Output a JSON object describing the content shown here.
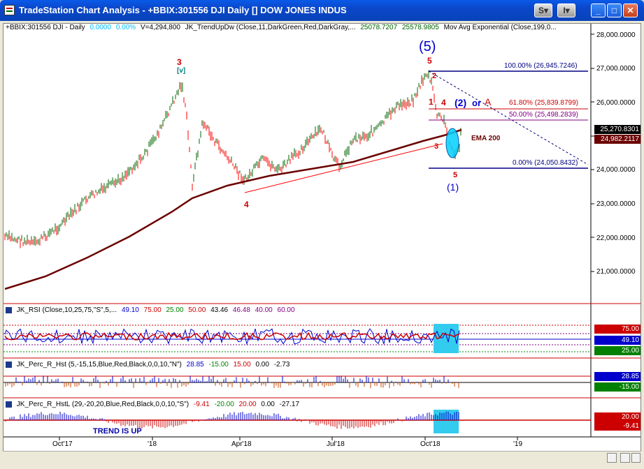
{
  "window": {
    "title": "TradeStation Chart Analysis - +BBIX:301556 DJI Daily [] DOW JONES INDUS",
    "buttons": {
      "s": "S",
      "i": "I"
    }
  },
  "price_header": {
    "symbol": "+BBIX:301556 DJI - Daily",
    "chg": "0.0000",
    "pct": "0.00%",
    "vol": "V=4,294,800",
    "indicator": "JK_TrendUpDw (Close,11,DarkGreen,Red,DarkGray,...",
    "val1": "25078.7207",
    "val2": "25578.9805",
    "mov": "Mov Avg Exponential (Close,199,0..."
  },
  "price_axis": [
    "28,000.0000",
    "27,000.0000",
    "26,000.0000",
    "25,000.0000",
    "24,000.0000",
    "23,000.0000",
    "22,000.0000",
    "21,000.0000"
  ],
  "price_boxes": {
    "last": "25,270.8301",
    "ema": "24,982.2117"
  },
  "fib_labels": {
    "f100": "100.00% (26,945.7246)",
    "f618": "61.80% (25,839.8799)",
    "f50": "50.00% (25,498.2839)",
    "f0": "0.00% (24,050.8432)"
  },
  "annotations": {
    "wave5_big": "(5)",
    "w5": "5",
    "w3": "3",
    "w3b": "[v]",
    "w4": "4",
    "w2": "2",
    "w1r": "1",
    "w4r": "4",
    "w3r": "3",
    "w5r": "5",
    "w2_or": "(2)",
    "or": "or",
    "a": "A",
    "w1": "(1)",
    "ema": "EMA 200"
  },
  "rsi": {
    "name": "JK_RSI (Close,10,25,75,\"S\",5,...",
    "v1": "49.10",
    "v2": "75.00",
    "v3": "25.00",
    "v4": "50.00",
    "v5": "43.46",
    "v6": "46.48",
    "v7": "40.00",
    "v8": "60.00",
    "boxes": [
      "75.00",
      "49.10",
      "25.00"
    ]
  },
  "perc": {
    "name": "JK_Perc_R_Hst (5,-15,15,Blue,Red,Black,0,0,10,\"N\")",
    "v1": "28.85",
    "v2": "-15.00",
    "v3": "15.00",
    "v4": "0.00",
    "v5": "-2.73",
    "boxes": [
      "28.85",
      "-15.00"
    ]
  },
  "percl": {
    "name": "JK_Perc_R_HstL (29,-20,20,Blue,Red,Black,0,0,10,\"S\")",
    "v1": "-9.41",
    "v2": "-20.00",
    "v3": "20.00",
    "v4": "0.00",
    "v5": "-27.17",
    "boxes": [
      "20.00",
      "-9.41"
    ],
    "trend": "TREND IS UP"
  },
  "time_axis": [
    "Oct'17",
    "'18",
    "Apr'18",
    "Jul'18",
    "Oct'18",
    "'19"
  ],
  "colors": {
    "up": "#006400",
    "down": "#ff0000",
    "ema": "#6b0000",
    "highlight": "#00c8ff"
  }
}
